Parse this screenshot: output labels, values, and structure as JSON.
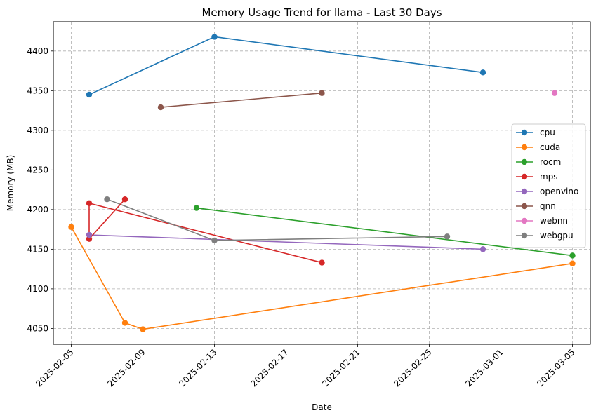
{
  "chart_data": {
    "type": "line",
    "title": "Memory Usage Trend for llama - Last 30 Days",
    "xlabel": "Date",
    "ylabel": "Memory (MB)",
    "x_ticks": [
      "2025-02-05",
      "2025-02-09",
      "2025-02-13",
      "2025-02-17",
      "2025-02-21",
      "2025-02-25",
      "2025-03-01",
      "2025-03-05"
    ],
    "y_ticks": [
      4050,
      4100,
      4150,
      4200,
      4250,
      4300,
      4350,
      4400
    ],
    "xlim": [
      "2025-02-04",
      "2025-03-06"
    ],
    "ylim": [
      4030,
      4437
    ],
    "grid": true,
    "legend_position": "center-right",
    "series": [
      {
        "name": "cpu",
        "color": "#1f77b4",
        "points": [
          [
            "2025-02-06",
            4345
          ],
          [
            "2025-02-13",
            4418
          ],
          [
            "2025-02-28",
            4373
          ]
        ]
      },
      {
        "name": "cuda",
        "color": "#ff7f0e",
        "points": [
          [
            "2025-02-05",
            4178
          ],
          [
            "2025-02-08",
            4057
          ],
          [
            "2025-02-09",
            4049
          ],
          [
            "2025-03-05",
            4132
          ]
        ]
      },
      {
        "name": "rocm",
        "color": "#2ca02c",
        "points": [
          [
            "2025-02-12",
            4202
          ],
          [
            "2025-03-05",
            4142
          ]
        ]
      },
      {
        "name": "mps",
        "color": "#d62728",
        "points": [
          [
            "2025-02-06",
            4163
          ],
          [
            "2025-02-06",
            4208
          ],
          [
            "2025-02-19",
            4133
          ]
        ]
      },
      {
        "name": "openvino",
        "color": "#9467bd",
        "points": [
          [
            "2025-02-06",
            4168
          ],
          [
            "2025-02-28",
            4150
          ]
        ]
      },
      {
        "name": "qnn",
        "color": "#8c564b",
        "points": [
          [
            "2025-02-10",
            4329
          ],
          [
            "2025-02-19",
            4347
          ]
        ]
      },
      {
        "name": "webnn",
        "color": "#e377c2",
        "points": [
          [
            "2025-03-04",
            4347
          ]
        ]
      },
      {
        "name": "webgpu",
        "color": "#7f7f7f",
        "points": [
          [
            "2025-02-07",
            4213
          ],
          [
            "2025-02-13",
            4161
          ],
          [
            "2025-02-26",
            4166
          ]
        ]
      }
    ],
    "extra_segments": [
      {
        "series": "mps",
        "points": [
          [
            "2025-02-06",
            4163
          ],
          [
            "2025-02-08",
            4213
          ]
        ]
      }
    ]
  }
}
